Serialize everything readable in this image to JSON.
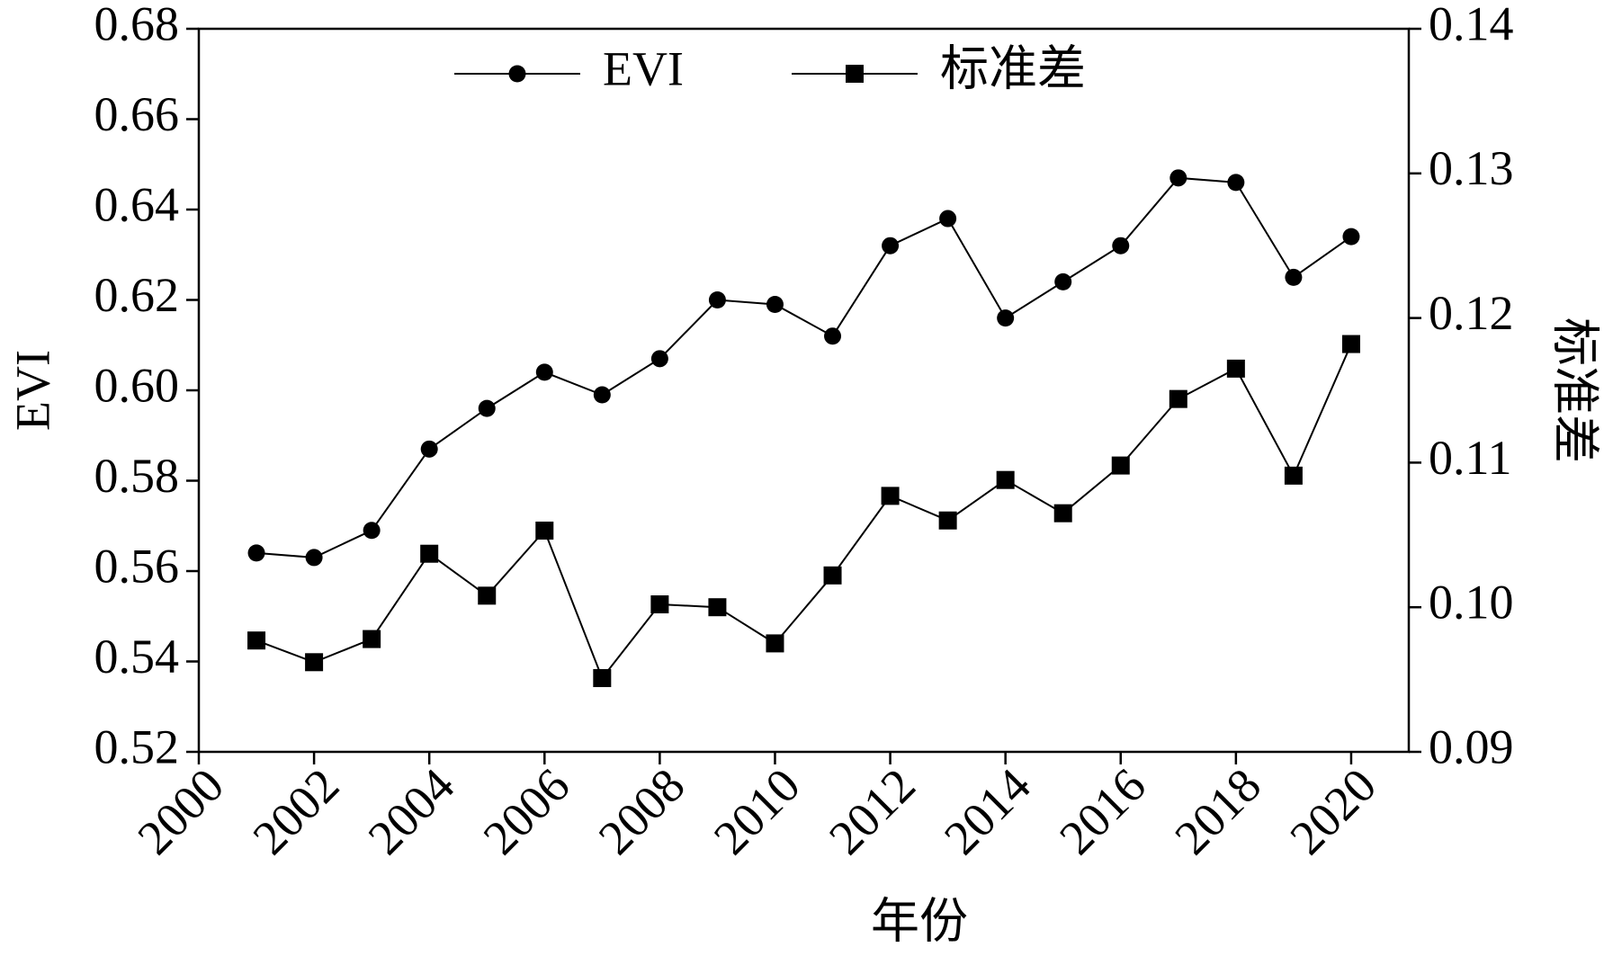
{
  "chart_data": {
    "type": "line",
    "x_label": "年份",
    "y_label": "EVI",
    "y2_label": "标准差",
    "x": [
      2001,
      2002,
      2003,
      2004,
      2005,
      2006,
      2007,
      2008,
      2009,
      2010,
      2011,
      2012,
      2013,
      2014,
      2015,
      2016,
      2017,
      2018,
      2019,
      2020
    ],
    "series": [
      {
        "name": "EVI",
        "color": "#000000",
        "marker": "circle",
        "values": [
          0.564,
          0.563,
          0.569,
          0.587,
          0.596,
          0.604,
          0.599,
          0.607,
          0.62,
          0.619,
          0.612,
          0.632,
          0.638,
          0.616,
          0.624,
          0.632,
          0.647,
          0.646,
          0.625,
          0.634
        ]
      },
      {
        "name": "标准差",
        "color": "#000000",
        "marker": "square",
        "axis": "y2",
        "values": [
          0.0977,
          0.0962,
          0.0978,
          0.1037,
          0.1008,
          0.1053,
          0.0951,
          0.1002,
          0.1,
          0.0975,
          0.1022,
          0.1077,
          0.106,
          0.1088,
          0.1065,
          0.1098,
          0.1144,
          0.1165,
          0.1091,
          0.1182
        ]
      }
    ],
    "xlim": [
      2000,
      2021
    ],
    "xticks": [
      2000,
      2002,
      2004,
      2006,
      2008,
      2010,
      2012,
      2014,
      2016,
      2018,
      2020
    ],
    "ylim": [
      0.52,
      0.68
    ],
    "yticks": [
      0.52,
      0.54,
      0.56,
      0.58,
      {
        "value": 0.6,
        "label": "0.60"
      },
      0.62,
      0.64,
      0.66,
      0.68
    ],
    "y2lim": [
      0.09,
      0.14
    ],
    "y2ticks": [
      0.09,
      {
        "value": 0.1,
        "label": "0.10"
      },
      0.11,
      0.12,
      0.13,
      0.14
    ],
    "grid": false,
    "legend": "top"
  }
}
